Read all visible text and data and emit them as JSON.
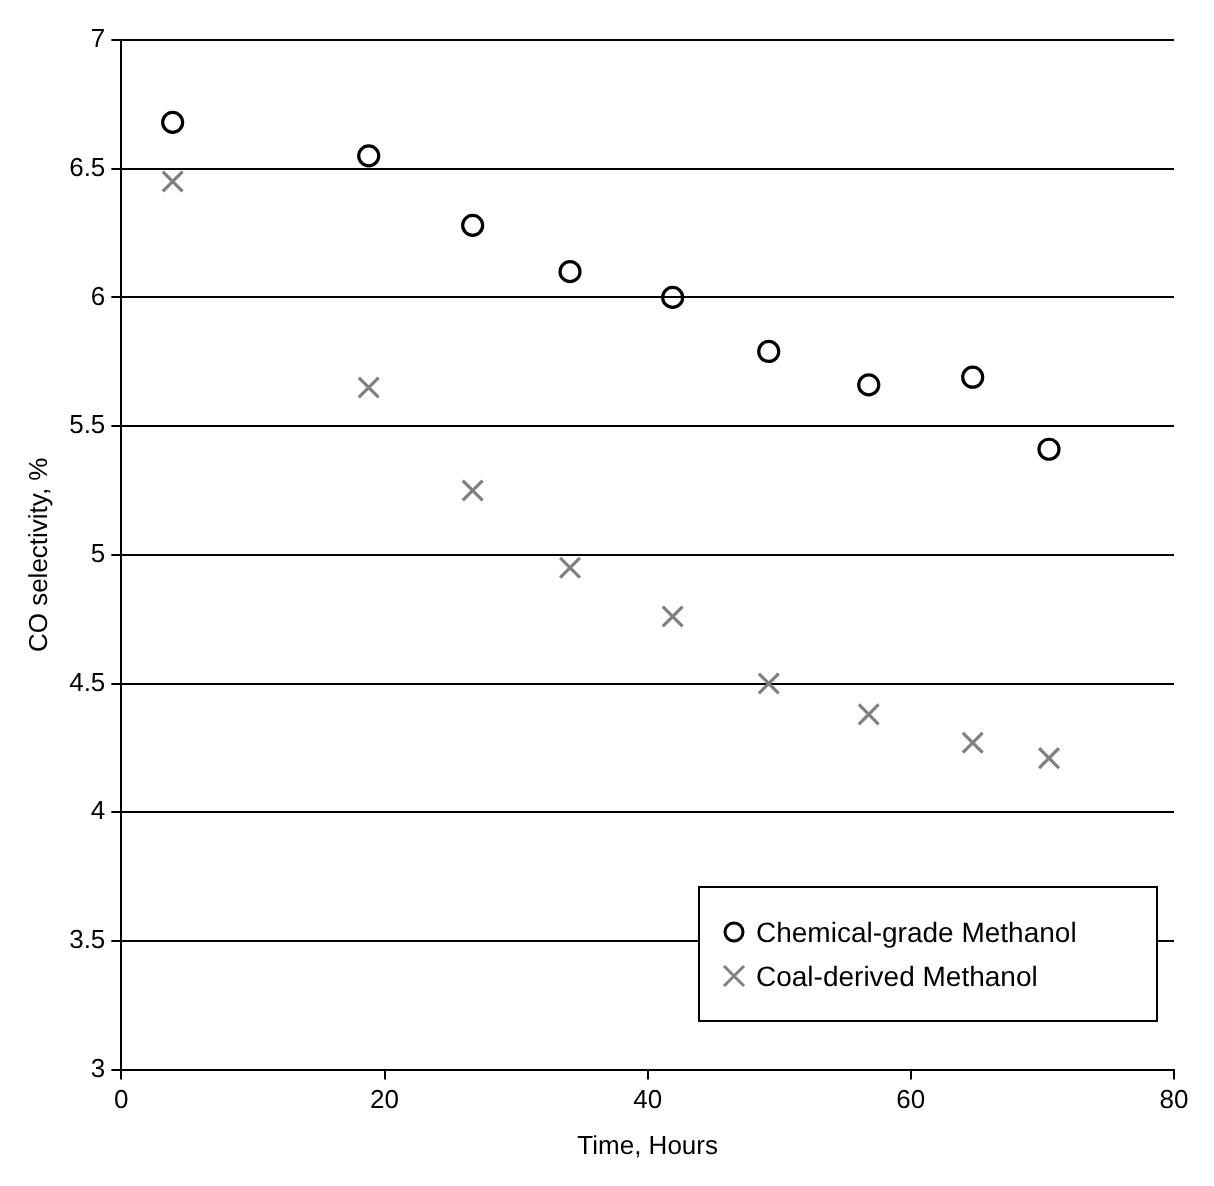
{
  "chart_data": {
    "type": "scatter",
    "xlabel": "Time, Hours",
    "ylabel": "CO selectivity, %",
    "xlim": [
      0,
      80
    ],
    "xticks": [
      0,
      20,
      40,
      60,
      80
    ],
    "ylim": [
      3,
      7
    ],
    "yticks": [
      3,
      {
        "value": 3.5,
        "label": "3.5"
      },
      4,
      {
        "value": 4.5,
        "label": "4.5"
      },
      5,
      {
        "value": 5.5,
        "label": "5.5"
      },
      6,
      {
        "value": 6.5,
        "label": "6.5"
      },
      7
    ],
    "grid": "y",
    "legend": "bottom right",
    "series": [
      {
        "name": "Chemical-grade Methanol",
        "color": "#000000",
        "marker": "circle",
        "x": [
          3.9,
          18.8,
          26.7,
          34.1,
          41.9,
          49.2,
          56.8,
          64.7,
          70.5
        ],
        "values": [
          6.68,
          6.55,
          6.28,
          6.1,
          6.0,
          5.79,
          5.66,
          5.69,
          5.41
        ]
      },
      {
        "name": "Coal-derived Methanol",
        "color": "#808080",
        "marker": "cross",
        "x": [
          3.9,
          18.8,
          26.7,
          34.1,
          41.9,
          49.2,
          56.8,
          64.7,
          70.5
        ],
        "values": [
          6.45,
          5.65,
          5.25,
          4.95,
          4.76,
          4.5,
          4.38,
          4.27,
          4.21
        ]
      }
    ]
  }
}
